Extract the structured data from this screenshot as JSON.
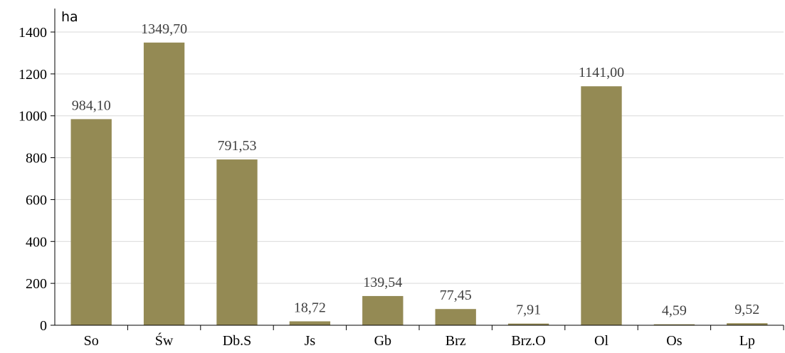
{
  "chart_data": {
    "type": "bar",
    "ylabel": "ha",
    "categories": [
      "So",
      "Św",
      "Db.S",
      "Js",
      "Gb",
      "Brz",
      "Brz.O",
      "Ol",
      "Os",
      "Lp"
    ],
    "values": [
      984.1,
      1349.7,
      791.53,
      18.72,
      139.54,
      77.45,
      7.91,
      1141.0,
      4.59,
      9.52
    ],
    "data_labels": [
      "984,10",
      "1349,70",
      "791,53",
      "18,72",
      "139,54",
      "77,45",
      "7,91",
      "1141,00",
      "4,59",
      "9,52"
    ],
    "ylim": [
      0,
      1400
    ],
    "yticks": [
      0,
      200,
      400,
      600,
      800,
      1000,
      1200,
      1400
    ],
    "grid": true,
    "legend": "none",
    "colors": {
      "bar": "#948a54",
      "grid": "#d9d9d9",
      "axis": "#000000"
    }
  }
}
